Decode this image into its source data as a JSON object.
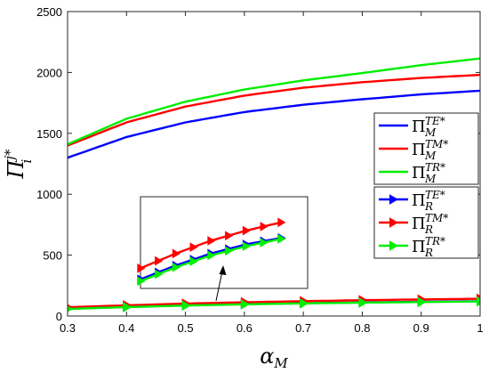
{
  "chart_data": {
    "type": "line",
    "xlabel": {
      "base": "α",
      "sub": "M"
    },
    "ylabel": {
      "base": "Π",
      "sup": "j*",
      "sub": "i"
    },
    "xlim": [
      0.3,
      1.0
    ],
    "ylim": [
      0,
      2500
    ],
    "xticks": [
      "0.3",
      "0.4",
      "0.5",
      "0.6",
      "0.7",
      "0.8",
      "0.9",
      "1"
    ],
    "yticks": [
      "0",
      "500",
      "1000",
      "1500",
      "2000",
      "2500"
    ],
    "x": [
      0.3,
      0.4,
      0.5,
      0.6,
      0.7,
      0.8,
      0.9,
      1.0
    ],
    "grid": false,
    "legend_upper": {
      "placement": "right"
    },
    "legend_lower": {
      "placement": "right"
    },
    "series": [
      {
        "name": {
          "base": "Π",
          "sup": "TE*",
          "sub": "M"
        },
        "color": "#0000ff",
        "marker": "none",
        "values": [
          1300,
          1470,
          1590,
          1675,
          1735,
          1780,
          1820,
          1850
        ]
      },
      {
        "name": {
          "base": "Π",
          "sup": "TM*",
          "sub": "M"
        },
        "color": "#ff0000",
        "marker": "none",
        "values": [
          1400,
          1590,
          1720,
          1810,
          1875,
          1920,
          1955,
          1980
        ]
      },
      {
        "name": {
          "base": "Π",
          "sup": "TR*",
          "sub": "M"
        },
        "color": "#00ee00",
        "marker": "none",
        "values": [
          1410,
          1620,
          1760,
          1860,
          1935,
          1995,
          2060,
          2115
        ]
      },
      {
        "name": {
          "base": "Π",
          "sup": "TE*",
          "sub": "R"
        },
        "color": "#0000ff",
        "marker": "triangle-right",
        "values": [
          60,
          75,
          88,
          98,
          105,
          112,
          117,
          122
        ]
      },
      {
        "name": {
          "base": "Π",
          "sup": "TM*",
          "sub": "R"
        },
        "color": "#ff0000",
        "marker": "triangle-right",
        "values": [
          72,
          88,
          102,
          113,
          122,
          130,
          136,
          142
        ]
      },
      {
        "name": {
          "base": "Π",
          "sup": "TR*",
          "sub": "R"
        },
        "color": "#00ee00",
        "marker": "triangle-right",
        "values": [
          58,
          73,
          86,
          96,
          104,
          110,
          115,
          120
        ]
      }
    ]
  }
}
